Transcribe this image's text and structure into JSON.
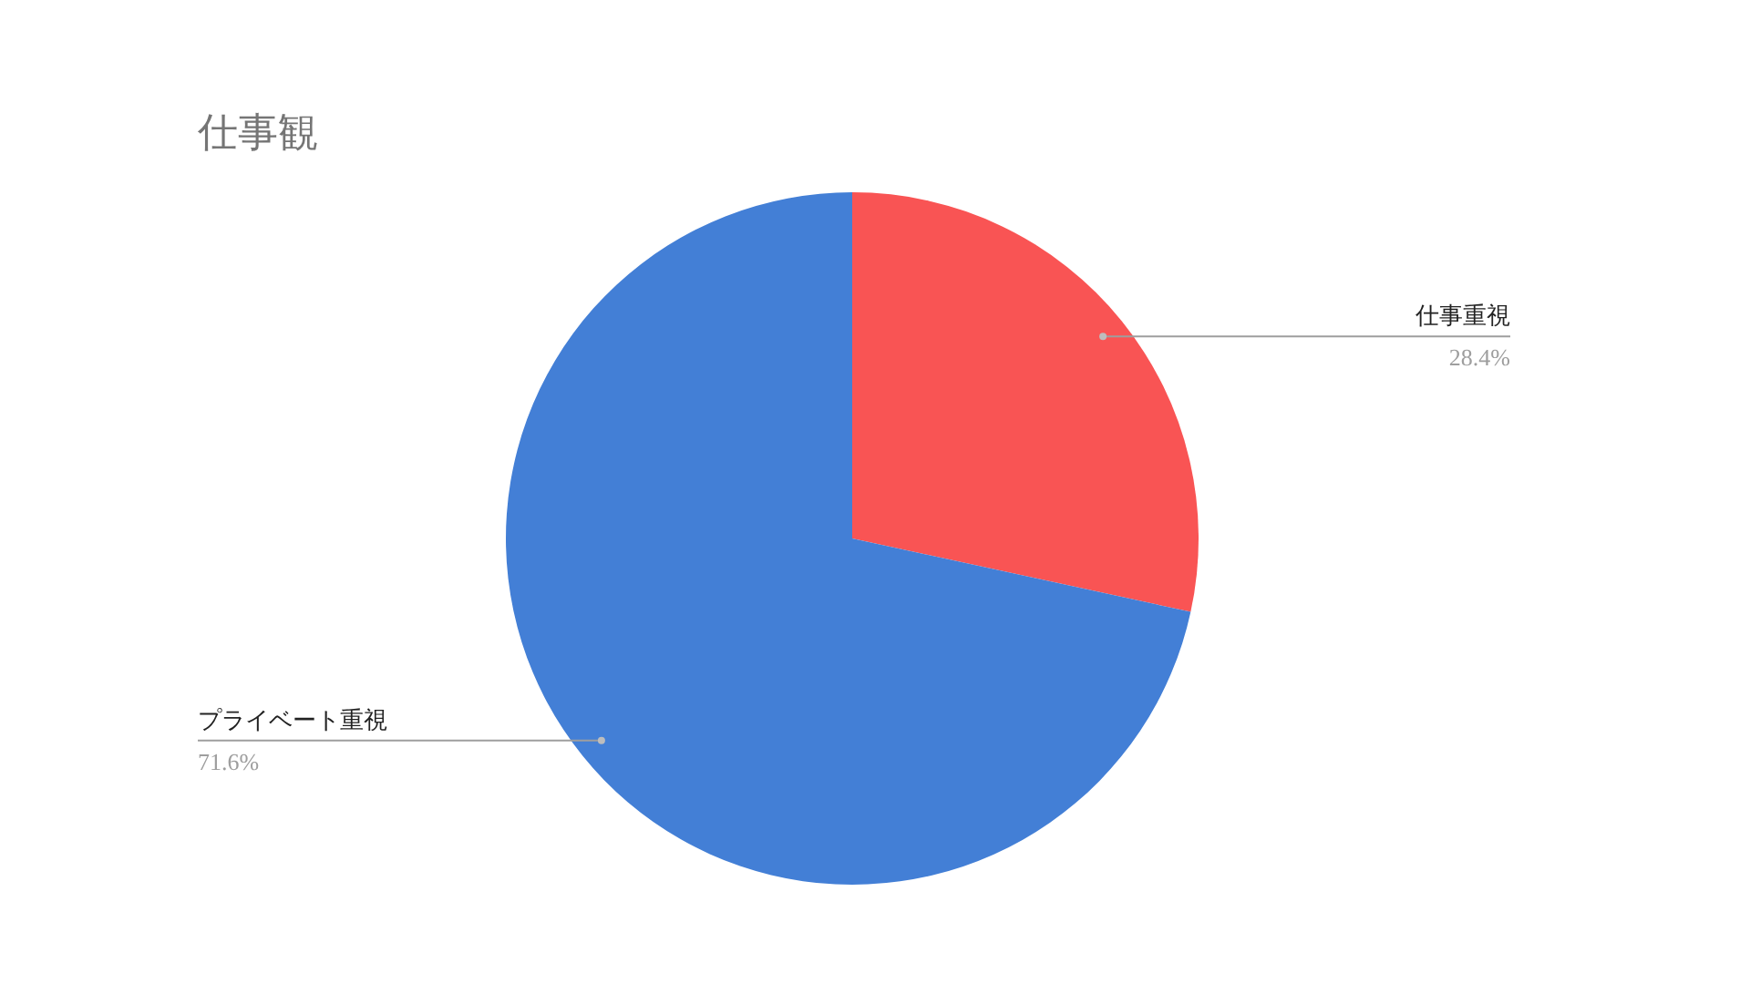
{
  "chart_data": {
    "type": "pie",
    "title": "仕事観",
    "categories": [
      "仕事重視",
      "プライベート重視"
    ],
    "values": [
      28.4,
      71.6
    ],
    "colors": [
      "#f95454",
      "#437fd6"
    ],
    "value_labels": [
      "28.4%",
      "71.6%"
    ]
  }
}
